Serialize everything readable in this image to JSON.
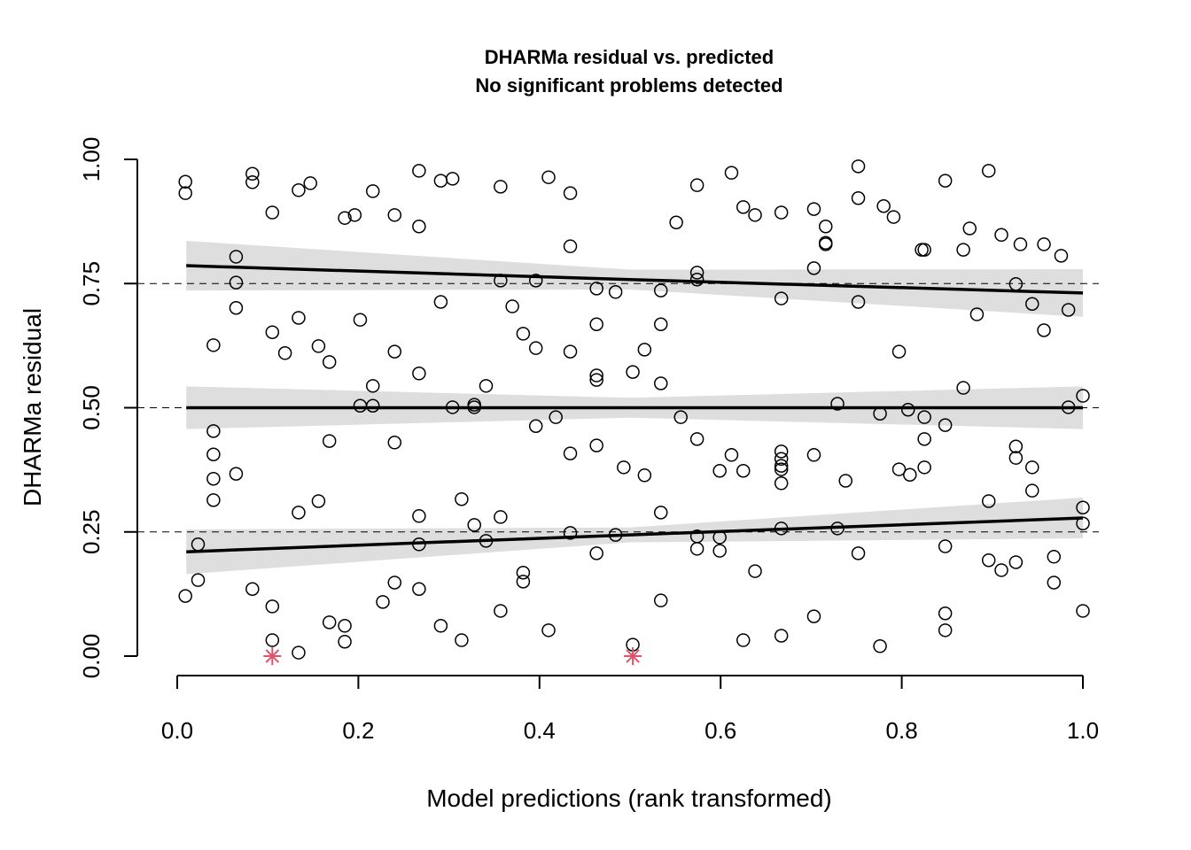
{
  "chart_data": {
    "type": "scatter",
    "title": "DHARMa residual vs. predicted",
    "subtitle": "No significant problems detected",
    "xlabel": "Model predictions (rank transformed)",
    "ylabel": "DHARMa residual",
    "xlim": [
      0,
      1
    ],
    "ylim": [
      0,
      1
    ],
    "xticks": [
      "0.0",
      "0.2",
      "0.4",
      "0.6",
      "0.8",
      "1.0"
    ],
    "xtick_values": [
      0,
      0.2,
      0.4,
      0.6,
      0.8,
      1.0
    ],
    "yticks": [
      "0.00",
      "0.25",
      "0.50",
      "0.75",
      "1.00"
    ],
    "ytick_values": [
      0,
      0.25,
      0.5,
      0.75,
      1.0
    ],
    "reference_lines": [
      0.25,
      0.5,
      0.75
    ],
    "colors": {
      "points": "#000000",
      "outliers": "#DF536B",
      "band": "#DEDEDE",
      "line": "#000000"
    },
    "quantile_fits": [
      {
        "quantile": 0.75,
        "x": [
          0.01,
          0.5,
          1.0
        ],
        "y": [
          0.786,
          0.758,
          0.731
        ],
        "lower": [
          0.736,
          0.738,
          0.683
        ],
        "upper": [
          0.836,
          0.778,
          0.779
        ]
      },
      {
        "quantile": 0.5,
        "x": [
          0.01,
          0.5,
          1.0
        ],
        "y": [
          0.5,
          0.5,
          0.5
        ],
        "lower": [
          0.457,
          0.48,
          0.457
        ],
        "upper": [
          0.543,
          0.52,
          0.543
        ]
      },
      {
        "quantile": 0.25,
        "x": [
          0.01,
          0.5,
          1.0
        ],
        "y": [
          0.21,
          0.244,
          0.278
        ],
        "lower": [
          0.165,
          0.229,
          0.237
        ],
        "upper": [
          0.255,
          0.259,
          0.319
        ]
      }
    ],
    "outliers": [
      [
        0.105,
        0.0
      ],
      [
        0.503,
        0.0
      ]
    ],
    "points": [
      [
        0.009,
        0.955
      ],
      [
        0.009,
        0.932
      ],
      [
        0.083,
        0.971
      ],
      [
        0.083,
        0.954
      ],
      [
        0.105,
        0.893
      ],
      [
        0.134,
        0.938
      ],
      [
        0.147,
        0.952
      ],
      [
        0.185,
        0.882
      ],
      [
        0.196,
        0.888
      ],
      [
        0.216,
        0.936
      ],
      [
        0.24,
        0.888
      ],
      [
        0.267,
        0.977
      ],
      [
        0.267,
        0.865
      ],
      [
        0.291,
        0.957
      ],
      [
        0.304,
        0.961
      ],
      [
        0.357,
        0.945
      ],
      [
        0.41,
        0.964
      ],
      [
        0.434,
        0.932
      ],
      [
        0.434,
        0.825
      ],
      [
        0.551,
        0.873
      ],
      [
        0.574,
        0.948
      ],
      [
        0.612,
        0.973
      ],
      [
        0.625,
        0.904
      ],
      [
        0.638,
        0.888
      ],
      [
        0.667,
        0.893
      ],
      [
        0.703,
        0.9
      ],
      [
        0.716,
        0.832
      ],
      [
        0.716,
        0.865
      ],
      [
        0.752,
        0.986
      ],
      [
        0.752,
        0.922
      ],
      [
        0.78,
        0.906
      ],
      [
        0.791,
        0.884
      ],
      [
        0.822,
        0.818
      ],
      [
        0.848,
        0.957
      ],
      [
        0.868,
        0.818
      ],
      [
        0.875,
        0.861
      ],
      [
        0.896,
        0.977
      ],
      [
        0.91,
        0.848
      ],
      [
        0.931,
        0.829
      ],
      [
        0.957,
        0.829
      ],
      [
        0.976,
        0.806
      ],
      [
        0.065,
        0.804
      ],
      [
        0.065,
        0.752
      ],
      [
        0.065,
        0.701
      ],
      [
        0.105,
        0.652
      ],
      [
        0.119,
        0.61
      ],
      [
        0.134,
        0.681
      ],
      [
        0.156,
        0.624
      ],
      [
        0.168,
        0.592
      ],
      [
        0.202,
        0.677
      ],
      [
        0.216,
        0.544
      ],
      [
        0.24,
        0.613
      ],
      [
        0.267,
        0.569
      ],
      [
        0.291,
        0.713
      ],
      [
        0.357,
        0.756
      ],
      [
        0.37,
        0.704
      ],
      [
        0.382,
        0.649
      ],
      [
        0.396,
        0.756
      ],
      [
        0.396,
        0.62
      ],
      [
        0.434,
        0.613
      ],
      [
        0.463,
        0.74
      ],
      [
        0.463,
        0.668
      ],
      [
        0.484,
        0.733
      ],
      [
        0.516,
        0.617
      ],
      [
        0.534,
        0.736
      ],
      [
        0.534,
        0.668
      ],
      [
        0.534,
        0.549
      ],
      [
        0.574,
        0.772
      ],
      [
        0.574,
        0.758
      ],
      [
        0.667,
        0.72
      ],
      [
        0.703,
        0.781
      ],
      [
        0.716,
        0.829
      ],
      [
        0.752,
        0.713
      ],
      [
        0.797,
        0.613
      ],
      [
        0.825,
        0.818
      ],
      [
        0.883,
        0.688
      ],
      [
        0.926,
        0.749
      ],
      [
        0.944,
        0.709
      ],
      [
        0.957,
        0.656
      ],
      [
        0.984,
        0.697
      ],
      [
        0.04,
        0.626
      ],
      [
        0.04,
        0.453
      ],
      [
        0.04,
        0.406
      ],
      [
        0.04,
        0.357
      ],
      [
        0.04,
        0.314
      ],
      [
        0.065,
        0.367
      ],
      [
        0.156,
        0.312
      ],
      [
        0.168,
        0.433
      ],
      [
        0.202,
        0.504
      ],
      [
        0.216,
        0.504
      ],
      [
        0.24,
        0.43
      ],
      [
        0.304,
        0.501
      ],
      [
        0.328,
        0.506
      ],
      [
        0.328,
        0.501
      ],
      [
        0.341,
        0.544
      ],
      [
        0.396,
        0.463
      ],
      [
        0.418,
        0.481
      ],
      [
        0.434,
        0.408
      ],
      [
        0.463,
        0.565
      ],
      [
        0.463,
        0.556
      ],
      [
        0.463,
        0.424
      ],
      [
        0.493,
        0.38
      ],
      [
        0.503,
        0.572
      ],
      [
        0.516,
        0.364
      ],
      [
        0.534,
        0.289
      ],
      [
        0.556,
        0.481
      ],
      [
        0.574,
        0.437
      ],
      [
        0.599,
        0.373
      ],
      [
        0.612,
        0.405
      ],
      [
        0.625,
        0.373
      ],
      [
        0.667,
        0.412
      ],
      [
        0.667,
        0.397
      ],
      [
        0.667,
        0.383
      ],
      [
        0.667,
        0.376
      ],
      [
        0.667,
        0.348
      ],
      [
        0.703,
        0.405
      ],
      [
        0.729,
        0.508
      ],
      [
        0.738,
        0.353
      ],
      [
        0.776,
        0.488
      ],
      [
        0.797,
        0.376
      ],
      [
        0.807,
        0.496
      ],
      [
        0.809,
        0.365
      ],
      [
        0.825,
        0.481
      ],
      [
        0.825,
        0.437
      ],
      [
        0.825,
        0.38
      ],
      [
        0.848,
        0.465
      ],
      [
        0.868,
        0.54
      ],
      [
        0.926,
        0.422
      ],
      [
        0.926,
        0.399
      ],
      [
        0.944,
        0.38
      ],
      [
        0.944,
        0.333
      ],
      [
        0.984,
        0.501
      ],
      [
        1.0,
        0.524
      ],
      [
        0.023,
        0.225
      ],
      [
        0.023,
        0.153
      ],
      [
        0.009,
        0.121
      ],
      [
        0.083,
        0.135
      ],
      [
        0.105,
        0.1
      ],
      [
        0.134,
        0.289
      ],
      [
        0.168,
        0.068
      ],
      [
        0.185,
        0.061
      ],
      [
        0.185,
        0.029
      ],
      [
        0.227,
        0.109
      ],
      [
        0.24,
        0.148
      ],
      [
        0.267,
        0.135
      ],
      [
        0.267,
        0.282
      ],
      [
        0.267,
        0.225
      ],
      [
        0.291,
        0.061
      ],
      [
        0.314,
        0.316
      ],
      [
        0.314,
        0.032
      ],
      [
        0.328,
        0.264
      ],
      [
        0.341,
        0.232
      ],
      [
        0.357,
        0.28
      ],
      [
        0.357,
        0.091
      ],
      [
        0.382,
        0.168
      ],
      [
        0.382,
        0.15
      ],
      [
        0.41,
        0.052
      ],
      [
        0.434,
        0.248
      ],
      [
        0.463,
        0.207
      ],
      [
        0.484,
        0.244
      ],
      [
        0.503,
        0.023
      ],
      [
        0.534,
        0.112
      ],
      [
        0.574,
        0.241
      ],
      [
        0.574,
        0.216
      ],
      [
        0.599,
        0.239
      ],
      [
        0.599,
        0.212
      ],
      [
        0.625,
        0.032
      ],
      [
        0.638,
        0.171
      ],
      [
        0.667,
        0.257
      ],
      [
        0.667,
        0.041
      ],
      [
        0.703,
        0.08
      ],
      [
        0.729,
        0.257
      ],
      [
        0.752,
        0.207
      ],
      [
        0.776,
        0.02
      ],
      [
        0.848,
        0.221
      ],
      [
        0.848,
        0.086
      ],
      [
        0.848,
        0.052
      ],
      [
        0.896,
        0.312
      ],
      [
        0.896,
        0.193
      ],
      [
        0.91,
        0.173
      ],
      [
        0.926,
        0.189
      ],
      [
        0.968,
        0.2
      ],
      [
        0.968,
        0.148
      ],
      [
        1.0,
        0.299
      ],
      [
        1.0,
        0.267
      ],
      [
        1.0,
        0.091
      ],
      [
        0.105,
        0.032
      ],
      [
        0.134,
        0.007
      ]
    ]
  }
}
